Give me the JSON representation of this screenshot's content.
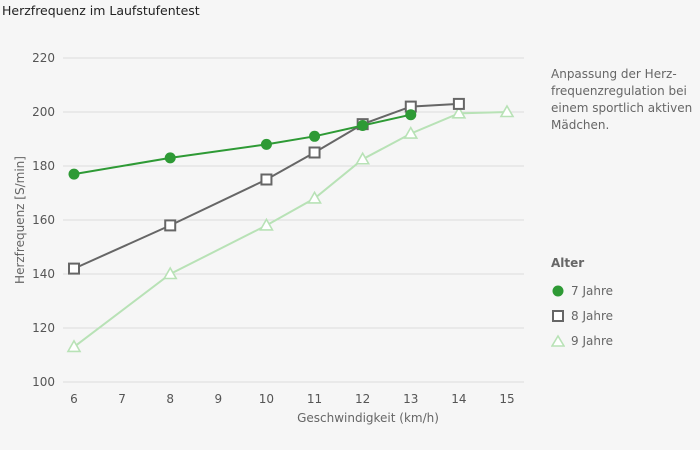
{
  "chart_data": {
    "type": "line",
    "title": "Herzfrequenz im Laufstufentest",
    "xlabel": "Geschwindigkeit (km/h)",
    "ylabel": "Herzfrequenz [S/min]",
    "x": [
      6,
      7,
      8,
      9,
      10,
      11,
      12,
      13,
      14,
      15
    ],
    "xticks": [
      "6",
      "7",
      "8",
      "9",
      "10",
      "11",
      "12",
      "13",
      "14",
      "15"
    ],
    "yticks": [
      "100",
      "120",
      "140",
      "160",
      "180",
      "200",
      "220"
    ],
    "ylim": [
      100,
      220
    ],
    "xlim": [
      6,
      15
    ],
    "grid": "horizontal",
    "legend_title": "Alter",
    "legend_position": "right",
    "annotation": "Anpassung der Herz-frequenzregulation bei einem sportlich aktiven Mädchen.",
    "series": [
      {
        "name": "7 Jahre",
        "marker": "circle",
        "color": "#2e9a35",
        "points": [
          [
            6,
            177
          ],
          [
            8,
            183
          ],
          [
            10,
            188
          ],
          [
            11,
            191
          ],
          [
            12,
            195
          ],
          [
            13,
            199
          ]
        ]
      },
      {
        "name": "8 Jahre",
        "marker": "square",
        "color": "#666666",
        "points": [
          [
            6,
            142
          ],
          [
            8,
            158
          ],
          [
            10,
            175
          ],
          [
            11,
            185
          ],
          [
            12,
            195.5
          ],
          [
            13,
            202
          ],
          [
            14,
            203
          ]
        ]
      },
      {
        "name": "9 Jahre",
        "marker": "triangle",
        "color": "#b8e2b6",
        "points": [
          [
            6,
            113
          ],
          [
            8,
            140
          ],
          [
            10,
            158
          ],
          [
            11,
            168
          ],
          [
            12,
            182.5
          ],
          [
            13,
            192
          ],
          [
            14,
            199.5
          ],
          [
            15,
            200
          ]
        ]
      }
    ]
  }
}
